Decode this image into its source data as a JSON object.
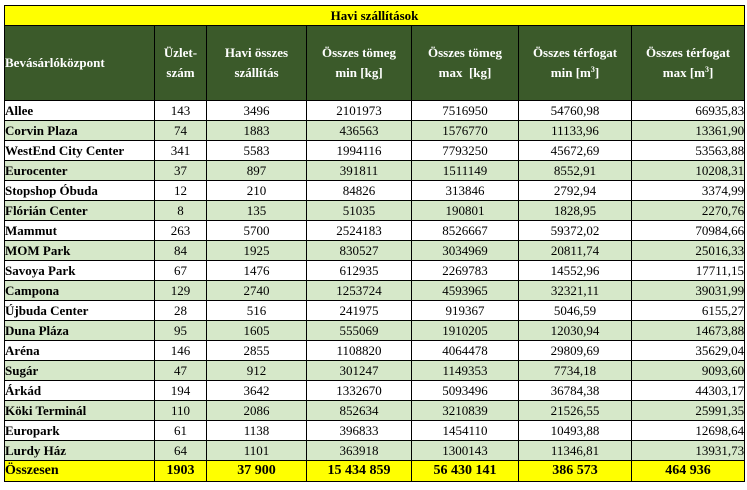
{
  "title": "Havi szállítások",
  "headers": {
    "center": "Bevásárlóközpont",
    "shops_l1": "Üzlet-",
    "shops_l2": "szám",
    "deliveries_l1": "Havi összes",
    "deliveries_l2": "szállítás",
    "mass_min_l1": "Összes tömeg",
    "mass_min_l2": "min [kg]",
    "mass_max_l1": "Összes tömeg",
    "mass_max_l2": "max  [kg]",
    "vol_min_l1": "Összes térfogat",
    "vol_min_l2a": "min [m",
    "vol_min_sup": "3",
    "vol_min_l2b": "]",
    "vol_max_l1": "Összes térfogat",
    "vol_max_l2a": "max [m",
    "vol_max_sup": "3",
    "vol_max_l2b": "]"
  },
  "rows": [
    {
      "name": "Allee",
      "shops": "143",
      "deliveries": "3496",
      "mass_min": "2101973",
      "mass_max": "7516950",
      "vol_min": "54760,98",
      "vol_max": "66935,83"
    },
    {
      "name": "Corvin Plaza",
      "shops": "74",
      "deliveries": "1883",
      "mass_min": "436563",
      "mass_max": "1576770",
      "vol_min": "11133,96",
      "vol_max": "13361,90"
    },
    {
      "name": "WestEnd City Center",
      "shops": "341",
      "deliveries": "5583",
      "mass_min": "1994116",
      "mass_max": "7793250",
      "vol_min": "45672,69",
      "vol_max": "53563,88"
    },
    {
      "name": "Eurocenter",
      "shops": "37",
      "deliveries": "897",
      "mass_min": "391811",
      "mass_max": "1511149",
      "vol_min": "8552,91",
      "vol_max": "10208,31"
    },
    {
      "name": "Stopshop Óbuda",
      "shops": "12",
      "deliveries": "210",
      "mass_min": "84826",
      "mass_max": "313846",
      "vol_min": "2792,94",
      "vol_max": "3374,99"
    },
    {
      "name": "Flórián Center",
      "shops": "8",
      "deliveries": "135",
      "mass_min": "51035",
      "mass_max": "190801",
      "vol_min": "1828,95",
      "vol_max": "2270,76"
    },
    {
      "name": "Mammut",
      "shops": "263",
      "deliveries": "5700",
      "mass_min": "2524183",
      "mass_max": "8526667",
      "vol_min": "59372,02",
      "vol_max": "70984,66"
    },
    {
      "name": "MOM Park",
      "shops": "84",
      "deliveries": "1925",
      "mass_min": "830527",
      "mass_max": "3034969",
      "vol_min": "20811,74",
      "vol_max": "25016,33"
    },
    {
      "name": "Savoya Park",
      "shops": "67",
      "deliveries": "1476",
      "mass_min": "612935",
      "mass_max": "2269783",
      "vol_min": "14552,96",
      "vol_max": "17711,15"
    },
    {
      "name": "Campona",
      "shops": "129",
      "deliveries": "2740",
      "mass_min": "1253724",
      "mass_max": "4593965",
      "vol_min": "32321,11",
      "vol_max": "39031,99"
    },
    {
      "name": "Újbuda Center",
      "shops": "28",
      "deliveries": "516",
      "mass_min": "241975",
      "mass_max": "919367",
      "vol_min": "5046,59",
      "vol_max": "6155,27"
    },
    {
      "name": "Duna Pláza",
      "shops": "95",
      "deliveries": "1605",
      "mass_min": "555069",
      "mass_max": "1910205",
      "vol_min": "12030,94",
      "vol_max": "14673,88"
    },
    {
      "name": "Aréna",
      "shops": "146",
      "deliveries": "2855",
      "mass_min": "1108820",
      "mass_max": "4064478",
      "vol_min": "29809,69",
      "vol_max": "35629,04"
    },
    {
      "name": "Sugár",
      "shops": "47",
      "deliveries": "912",
      "mass_min": "301247",
      "mass_max": "1149353",
      "vol_min": "7734,18",
      "vol_max": "9093,60"
    },
    {
      "name": "Árkád",
      "shops": "194",
      "deliveries": "3642",
      "mass_min": "1332670",
      "mass_max": "5093496",
      "vol_min": "36784,38",
      "vol_max": "44303,17"
    },
    {
      "name": "Köki Terminál",
      "shops": "110",
      "deliveries": "2086",
      "mass_min": "852634",
      "mass_max": "3210839",
      "vol_min": "21526,55",
      "vol_max": "25991,35"
    },
    {
      "name": "Europark",
      "shops": "61",
      "deliveries": "1138",
      "mass_min": "396833",
      "mass_max": "1454110",
      "vol_min": "10493,88",
      "vol_max": "12698,64"
    },
    {
      "name": "Lurdy Ház",
      "shops": "64",
      "deliveries": "1101",
      "mass_min": "363918",
      "mass_max": "1300143",
      "vol_min": "11346,81",
      "vol_max": "13931,73"
    }
  ],
  "total": {
    "name": "Összesen",
    "shops": "1903",
    "deliveries": "37 900",
    "mass_min": "15 434 859",
    "mass_max": "56 430 141",
    "vol_min": "386 573",
    "vol_max": "464 936"
  },
  "colors": {
    "header_bg": "#3b5a2a",
    "title_bg": "#ffff00",
    "row_alt_bg": "#d6e8c9",
    "total_bg": "#ffff00"
  }
}
